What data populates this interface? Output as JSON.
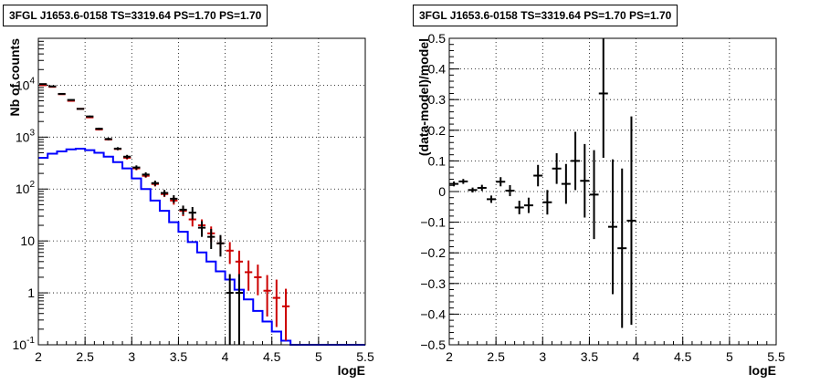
{
  "chart_data": [
    {
      "type": "step",
      "title": "3FGL J1653.6-0158 TS=3319.64 PS=1.70 PS=1.70",
      "xlabel": "logE",
      "ylabel": "Nb of counts",
      "xlim": [
        2,
        5.5
      ],
      "ylim": [
        0.1,
        80000
      ],
      "yscale": "log",
      "grid": true,
      "x_ticks": [
        "2",
        "2.5",
        "3",
        "3.5",
        "4",
        "4.5",
        "5",
        "5.5"
      ],
      "y_ticks": [
        {
          "value": 0.1,
          "label": "10",
          "exp": "-1"
        },
        {
          "value": 1,
          "label": "1",
          "exp": ""
        },
        {
          "value": 10,
          "label": "10",
          "exp": ""
        },
        {
          "value": 100,
          "label": "10",
          "exp": "2"
        },
        {
          "value": 1000,
          "label": "10",
          "exp": "3"
        },
        {
          "value": 10000,
          "label": "10",
          "exp": "4"
        }
      ],
      "series": [
        {
          "color": "#0000ff",
          "bin_edges": [
            2.0,
            2.1,
            2.2,
            2.3,
            2.4,
            2.5,
            2.6,
            2.7,
            2.8,
            2.9,
            3.0,
            3.1,
            3.2,
            3.3,
            3.4,
            3.5,
            3.6,
            3.7,
            3.8,
            3.9,
            4.0,
            4.1,
            4.2,
            4.3,
            4.4,
            4.5,
            4.6,
            4.7,
            4.8,
            4.9,
            5.0,
            5.1,
            5.2,
            5.3,
            5.4,
            5.5
          ],
          "values": [
            400,
            480,
            530,
            580,
            600,
            560,
            500,
            420,
            330,
            250,
            160,
            100,
            60,
            38,
            23,
            15,
            9.5,
            6,
            4,
            2.6,
            1.8,
            1.15,
            0.75,
            0.45,
            0.28,
            0.18,
            0.12,
            0.1,
            0.1,
            0.1,
            0.1,
            0.1,
            0.1,
            0.1,
            0.1
          ]
        },
        {
          "color": "#cc0000",
          "x": [
            2.05,
            2.15,
            2.25,
            2.35,
            2.45,
            2.55,
            2.65,
            2.75,
            2.85,
            2.95,
            3.05,
            3.15,
            3.25,
            3.35,
            3.45,
            3.55,
            3.65,
            3.75,
            3.85,
            3.95,
            4.05,
            4.15,
            4.25,
            4.35,
            4.45,
            4.55,
            4.65
          ],
          "y": [
            10000,
            9300,
            6700,
            5000,
            3500,
            2400,
            1400,
            900,
            590,
            400,
            250,
            180,
            125,
            80,
            60,
            38,
            26,
            20,
            14,
            9,
            6.5,
            4,
            2.5,
            2,
            1.1,
            0.8,
            0.55
          ],
          "y_low": [
            10000,
            9200,
            6600,
            4900,
            3400,
            2350,
            1350,
            870,
            560,
            370,
            230,
            165,
            112,
            70,
            50,
            30,
            19,
            14,
            9.5,
            5.5,
            3.6,
            2,
            1.1,
            0.9,
            0.35,
            0.22,
            0.12
          ],
          "y_high": [
            10200,
            9400,
            6800,
            5100,
            3600,
            2450,
            1450,
            930,
            620,
            430,
            270,
            195,
            138,
            90,
            70,
            46,
            33,
            26,
            19,
            12.5,
            9.5,
            6.5,
            4.2,
            3.5,
            2.2,
            1.8,
            1.2
          ]
        },
        {
          "color": "#000000",
          "x": [
            2.05,
            2.15,
            2.25,
            2.35,
            2.45,
            2.55,
            2.65,
            2.75,
            2.85,
            2.95,
            3.05,
            3.15,
            3.25,
            3.35,
            3.45,
            3.55,
            3.65,
            3.75,
            3.85,
            3.95,
            4.05,
            4.15
          ],
          "y": [
            10500,
            9500,
            6800,
            5200,
            3500,
            2500,
            1450,
            920,
            600,
            420,
            260,
            190,
            130,
            84,
            65,
            40,
            35,
            18,
            12,
            9,
            1,
            1
          ],
          "y_low": [
            10300,
            9300,
            6650,
            5050,
            3400,
            2400,
            1380,
            870,
            560,
            385,
            235,
            170,
            115,
            72,
            54,
            32,
            26,
            12,
            7,
            5,
            0.1,
            0.1
          ],
          "y_high": [
            10700,
            9700,
            6950,
            5350,
            3600,
            2600,
            1520,
            970,
            640,
            455,
            285,
            210,
            145,
            96,
            76,
            48,
            45,
            24,
            17,
            13,
            2.3,
            2.3
          ]
        }
      ]
    },
    {
      "type": "scatter",
      "title": "3FGL J1653.6-0158 TS=3319.64 PS=1.70 PS=1.70",
      "xlabel": "logE",
      "ylabel": "(data-model)/model",
      "xlim": [
        2,
        5.5
      ],
      "ylim": [
        -0.5,
        0.5
      ],
      "grid": true,
      "x_ticks": [
        "2",
        "2.5",
        "3",
        "3.5",
        "4",
        "4.5",
        "5",
        "5.5"
      ],
      "y_ticks": [
        "−0.5",
        "−0.4",
        "−0.3",
        "−0.2",
        "−0.1",
        "0",
        "0.1",
        "0.2",
        "0.3",
        "0.4",
        "0.5"
      ],
      "points": {
        "x": [
          2.05,
          2.15,
          2.25,
          2.35,
          2.45,
          2.55,
          2.65,
          2.75,
          2.85,
          2.95,
          3.05,
          3.15,
          3.25,
          3.35,
          3.45,
          3.55,
          3.65,
          3.75,
          3.85,
          3.95
        ],
        "y": [
          0.025,
          0.033,
          0.005,
          0.012,
          -0.025,
          0.032,
          0.003,
          -0.052,
          -0.045,
          0.052,
          -0.035,
          0.075,
          0.025,
          0.1,
          0.035,
          -0.01,
          0.32,
          -0.115,
          -0.185,
          -0.095
        ],
        "y_err": [
          0.008,
          0.008,
          0.008,
          0.01,
          0.012,
          0.015,
          0.018,
          0.022,
          0.025,
          0.035,
          0.04,
          0.05,
          0.065,
          0.095,
          0.12,
          0.145,
          0.21,
          0.22,
          0.26,
          0.34
        ]
      }
    }
  ]
}
